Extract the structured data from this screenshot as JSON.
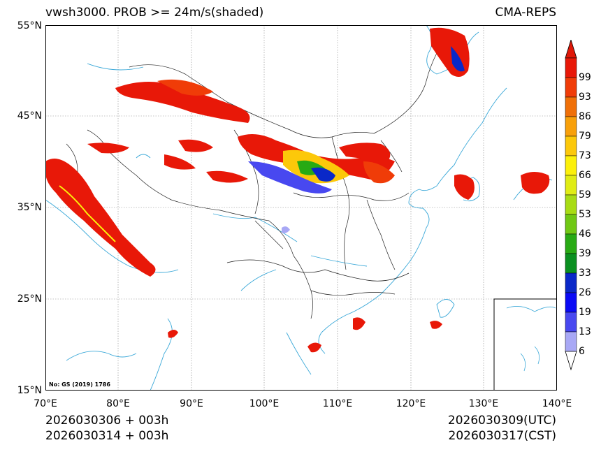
{
  "header": {
    "title_left": "vwsh3000. PROB >= 24m/s(shaded)",
    "title_right": "CMA-REPS"
  },
  "axes": {
    "lat_labels": [
      "55°N",
      "45°N",
      "35°N",
      "25°N",
      "15°N"
    ],
    "lat_values": [
      55,
      45,
      35,
      25,
      15
    ],
    "lon_labels": [
      "70°E",
      "80°E",
      "90°E",
      "100°E",
      "110°E",
      "120°E",
      "130°E",
      "140°E"
    ],
    "lon_values": [
      70,
      80,
      90,
      100,
      110,
      120,
      130,
      140
    ],
    "lon_range": [
      70,
      140
    ],
    "lat_range": [
      15,
      55
    ]
  },
  "footer": {
    "init_utc": "2026030306  +  003h",
    "init_cst": "2026030314  +  003h",
    "valid_utc": "2026030309(UTC)",
    "valid_cst": "2026030317(CST)"
  },
  "map_note": "No: GS (2019) 1786",
  "colorbar": {
    "levels": [
      "6",
      "13",
      "19",
      "26",
      "33",
      "39",
      "46",
      "53",
      "59",
      "66",
      "73",
      "79",
      "86",
      "93",
      "99"
    ],
    "colors": [
      "#a8a8f5",
      "#4848f0",
      "#0a0af5",
      "#0a28c8",
      "#0a9020",
      "#28aa14",
      "#70c814",
      "#a8dc14",
      "#e0ec14",
      "#fcf00a",
      "#fcc80a",
      "#f8a00a",
      "#f07008",
      "#f03c08",
      "#e81808"
    ],
    "over_color": "#e01808",
    "under_color": "#ffffff"
  },
  "colors": {
    "coast": "#3aa8d8",
    "border": "#222222",
    "grid": "#888888"
  }
}
